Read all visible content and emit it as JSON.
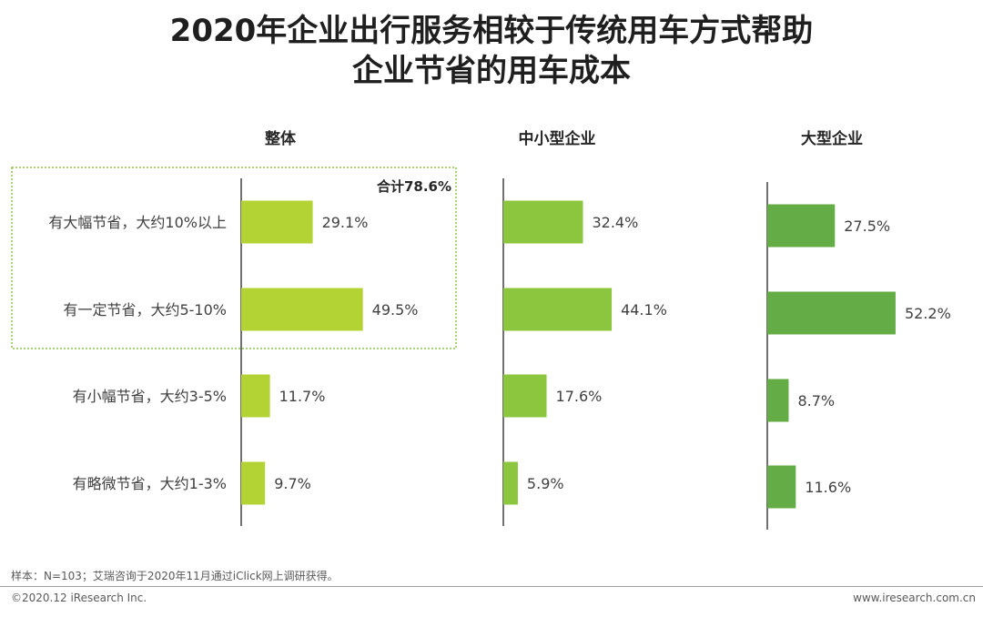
{
  "title": {
    "line1": "2020年企业出行服务相较于传统用车方式帮助",
    "line2": "企业节省的用车成本"
  },
  "colors": {
    "overall": "#b3d334",
    "sme": "#8cc63f",
    "large": "#64ad46",
    "axis": "#404040",
    "highlight_border": "#8bc34a"
  },
  "chart_data": {
    "type": "bar",
    "orientation": "horizontal",
    "categories": [
      "有大幅节省，大约10%以上",
      "有一定节省，大约5-10%",
      "有小幅节省，大约3-5%",
      "有略微节省，大约1-3%"
    ],
    "series": [
      {
        "name": "整体",
        "values": [
          29.1,
          49.5,
          11.7,
          9.7
        ],
        "labels": [
          "29.1%",
          "49.5%",
          "11.7%",
          "9.7%"
        ]
      },
      {
        "name": "中小型企业",
        "values": [
          32.4,
          44.1,
          17.6,
          5.9
        ],
        "labels": [
          "32.4%",
          "44.1%",
          "17.6%",
          "5.9%"
        ]
      },
      {
        "name": "大型企业",
        "values": [
          27.5,
          52.2,
          8.7,
          11.6
        ],
        "labels": [
          "27.5%",
          "52.2%",
          "8.7%",
          "11.6%"
        ]
      }
    ],
    "annotation": "合计78.6%",
    "xlim": [
      0,
      100
    ],
    "grid": false
  },
  "footer": {
    "note": "样本：N=103；艾瑞咨询于2020年11月通过iClick网上调研获得。",
    "copyright": "©2020.12 iResearch Inc.",
    "website": "www.iresearch.com.cn"
  }
}
